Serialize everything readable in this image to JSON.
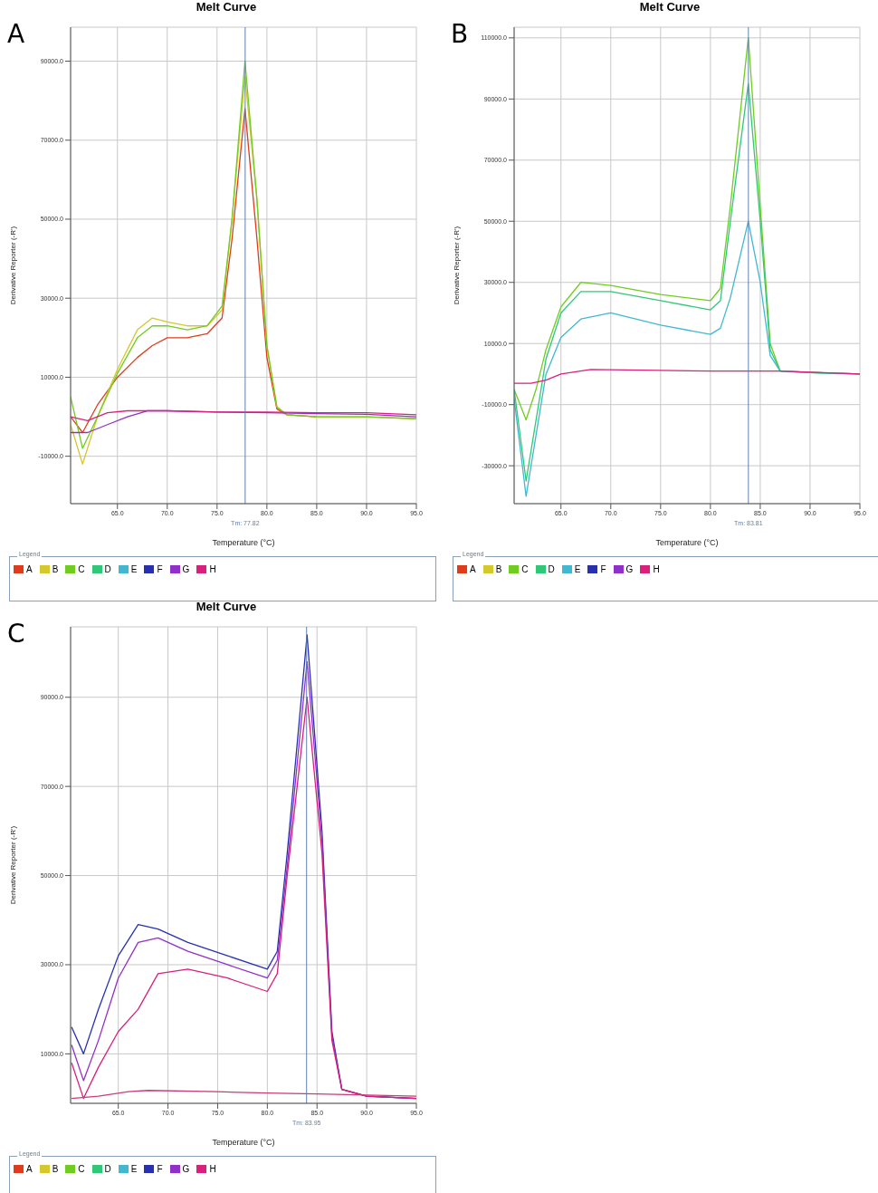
{
  "chart_data": [
    {
      "type": "line",
      "title": "Melt Curve",
      "annotations": [
        "A"
      ],
      "xlabel": "Temperature (°C)",
      "ylabel": "Derivative Reporter (-R')",
      "legend_title": "Legend",
      "legend": "bottom",
      "grid": true,
      "xlim": [
        60.3,
        95
      ],
      "xticks": [
        {
          "value": 65,
          "label": "65.0"
        },
        {
          "value": 70,
          "label": "70.0"
        },
        {
          "value": 75,
          "label": "75.0"
        },
        {
          "value": 80,
          "label": "80.0"
        },
        {
          "value": 85,
          "label": "85.0"
        },
        {
          "value": 90,
          "label": "90.0"
        },
        {
          "value": 95,
          "label": "95.0"
        }
      ],
      "ylim": [
        -22000,
        98600
      ],
      "yticks": [
        {
          "value": -10000,
          "label": "-10000.0"
        },
        {
          "value": 10000,
          "label": "10000.0"
        },
        {
          "value": 30000,
          "label": "30000.0"
        },
        {
          "value": 50000,
          "label": "50000.0"
        },
        {
          "value": 70000,
          "label": "70000.0"
        },
        {
          "value": 90000,
          "label": "90000.0"
        }
      ],
      "ref_lines": [
        {
          "axis": "x",
          "value": 77.82,
          "label": "Tm: 77.82",
          "color": "#6080b0"
        }
      ],
      "series": [
        {
          "name": "A",
          "color": "#e03c1c",
          "x": [
            60.3,
            61.5,
            63,
            65,
            67,
            68.5,
            70,
            72,
            74,
            75.5,
            76.5,
            77.8,
            79,
            80,
            81,
            82,
            85
          ],
          "values": [
            0,
            -4000,
            3000,
            10000,
            15000,
            18000,
            20000,
            20000,
            21000,
            25000,
            45000,
            78000,
            45000,
            15000,
            2000,
            500,
            0
          ]
        },
        {
          "name": "B",
          "color": "#d4c82c",
          "x": [
            60.3,
            61.5,
            63,
            65,
            67,
            68.5,
            70,
            72,
            74,
            75.5,
            76.5,
            77.8,
            79,
            80,
            81,
            82,
            85,
            90,
            95
          ],
          "values": [
            -2000,
            -12000,
            0,
            12000,
            22000,
            25000,
            24000,
            23000,
            23000,
            27000,
            50000,
            86000,
            55000,
            18000,
            2500,
            500,
            0,
            0,
            -500
          ]
        },
        {
          "name": "C",
          "color": "#70cc20",
          "x": [
            60.3,
            61.5,
            63,
            65,
            67,
            68.5,
            70,
            72,
            74,
            75.5,
            76.5,
            77.8,
            79,
            80,
            81,
            82,
            85,
            90,
            95
          ],
          "values": [
            5000,
            -8000,
            0,
            11000,
            20000,
            23000,
            23000,
            22000,
            23000,
            28000,
            50000,
            90000,
            55000,
            18000,
            2500,
            500,
            0,
            0,
            -500
          ]
        },
        {
          "name": "D",
          "color": "#30c878"
        },
        {
          "name": "E",
          "color": "#40b8d0"
        },
        {
          "name": "F",
          "color": "#2830b0"
        },
        {
          "name": "G",
          "color": "#9030c8",
          "x": [
            60.3,
            62,
            64,
            66,
            68,
            70,
            75,
            80,
            85,
            90,
            95
          ],
          "values": [
            -4000,
            -4000,
            -2000,
            0,
            1500,
            1500,
            1200,
            1000,
            800,
            600,
            0
          ]
        },
        {
          "name": "H",
          "color": "#d8207c",
          "x": [
            60.3,
            62,
            64,
            66,
            68,
            70,
            75,
            80,
            85,
            90,
            95
          ],
          "values": [
            0,
            -1000,
            1000,
            1500,
            1500,
            1500,
            1200,
            1200,
            1000,
            1000,
            500
          ]
        }
      ]
    },
    {
      "type": "line",
      "title": "Melt Curve",
      "annotations": [
        "B"
      ],
      "xlabel": "Temperature (°C)",
      "ylabel": "Derivative Reporter (-R')",
      "legend_title": "Legend",
      "legend": "bottom",
      "grid": true,
      "xlim": [
        60.3,
        95
      ],
      "xticks": [
        {
          "value": 65,
          "label": "65.0"
        },
        {
          "value": 70,
          "label": "70.0"
        },
        {
          "value": 75,
          "label": "75.0"
        },
        {
          "value": 80,
          "label": "80.0"
        },
        {
          "value": 85,
          "label": "85.0"
        },
        {
          "value": 90,
          "label": "90.0"
        },
        {
          "value": 95,
          "label": "95.0"
        }
      ],
      "ylim": [
        -42400,
        113500
      ],
      "yticks": [
        {
          "value": -30000,
          "label": "-30000.0"
        },
        {
          "value": -10000,
          "label": "-10000.0"
        },
        {
          "value": 10000,
          "label": "10000.0"
        },
        {
          "value": 30000,
          "label": "30000.0"
        },
        {
          "value": 50000,
          "label": "50000.0"
        },
        {
          "value": 70000,
          "label": "70000.0"
        },
        {
          "value": 90000,
          "label": "90000.0"
        },
        {
          "value": 110000,
          "label": "110000.0"
        }
      ],
      "ref_lines": [
        {
          "axis": "x",
          "value": 83.81,
          "label": "Tm: 83.81",
          "color": "#6080b0"
        }
      ],
      "series": [
        {
          "name": "A",
          "color": "#e03c1c"
        },
        {
          "name": "B",
          "color": "#d4c82c"
        },
        {
          "name": "C",
          "color": "#70cc20",
          "x": [
            60.3,
            61.5,
            62.5,
            63.5,
            65,
            67,
            70,
            75,
            80,
            81,
            82,
            83.8,
            85,
            86,
            87,
            90,
            95
          ],
          "values": [
            -5000,
            -15000,
            -5000,
            8000,
            22000,
            30000,
            29000,
            26000,
            24000,
            28000,
            55000,
            110000,
            55000,
            10000,
            1000,
            500,
            0
          ]
        },
        {
          "name": "D",
          "color": "#30c878",
          "x": [
            60.3,
            61.5,
            62.5,
            63.5,
            65,
            67,
            70,
            75,
            80,
            81,
            82,
            83.8,
            85,
            86,
            87,
            90,
            95
          ],
          "values": [
            -5000,
            -35000,
            -15000,
            5000,
            20000,
            27000,
            27000,
            24000,
            21000,
            24000,
            50000,
            95000,
            50000,
            8000,
            1000,
            500,
            0
          ]
        },
        {
          "name": "E",
          "color": "#40b8d0",
          "x": [
            60.3,
            61.5,
            62.5,
            63.5,
            65,
            67,
            70,
            75,
            80,
            81,
            82,
            83.8,
            85,
            86,
            87,
            90,
            95
          ],
          "values": [
            -8000,
            -40000,
            -20000,
            0,
            12000,
            18000,
            20000,
            16000,
            13000,
            15000,
            25000,
            50000,
            30000,
            6000,
            1000,
            500,
            0
          ]
        },
        {
          "name": "F",
          "color": "#2830b0"
        },
        {
          "name": "G",
          "color": "#9030c8"
        },
        {
          "name": "H",
          "color": "#d8207c",
          "x": [
            60.3,
            62,
            63.5,
            65,
            68,
            75,
            80,
            87,
            95
          ],
          "values": [
            -3000,
            -3000,
            -2000,
            0,
            1500,
            1200,
            1000,
            1000,
            0
          ]
        }
      ]
    },
    {
      "type": "line",
      "title": "Melt Curve",
      "annotations": [
        "C"
      ],
      "xlabel": "Temperature (°C)",
      "ylabel": "Derivative Reporter (-R')",
      "legend_title": "Legend",
      "legend": "bottom",
      "grid": true,
      "xlim": [
        60.2,
        95
      ],
      "xticks": [
        {
          "value": 65,
          "label": "65.0"
        },
        {
          "value": 70,
          "label": "70.0"
        },
        {
          "value": 75,
          "label": "75.0"
        },
        {
          "value": 80,
          "label": "80.0"
        },
        {
          "value": 85,
          "label": "85.0"
        },
        {
          "value": 90,
          "label": "90.0"
        },
        {
          "value": 95,
          "label": "95.0"
        }
      ],
      "ylim": [
        -1100,
        105800
      ],
      "yticks": [
        {
          "value": 10000,
          "label": "10000.0"
        },
        {
          "value": 30000,
          "label": "30000.0"
        },
        {
          "value": 50000,
          "label": "50000.0"
        },
        {
          "value": 70000,
          "label": "70000.0"
        },
        {
          "value": 90000,
          "label": "90000.0"
        }
      ],
      "ref_lines": [
        {
          "axis": "x",
          "value": 83.95,
          "label": "Tm: 83.95",
          "color": "#6080b0"
        }
      ],
      "series": [
        {
          "name": "A",
          "color": "#e03c1c"
        },
        {
          "name": "B",
          "color": "#d4c82c"
        },
        {
          "name": "C",
          "color": "#70cc20"
        },
        {
          "name": "D",
          "color": "#30c878"
        },
        {
          "name": "E",
          "color": "#40b8d0"
        },
        {
          "name": "F",
          "color": "#2830b0",
          "x": [
            60.3,
            61.5,
            63,
            65,
            67,
            69,
            72,
            76,
            80,
            81,
            82,
            84,
            85.5,
            86.5,
            87.5,
            90,
            95
          ],
          "values": [
            16000,
            10000,
            20000,
            32000,
            39000,
            38000,
            35000,
            32000,
            29000,
            33000,
            55000,
            104000,
            60000,
            15000,
            2000,
            500,
            0
          ]
        },
        {
          "name": "G",
          "color": "#9030c8",
          "x": [
            60.3,
            61.5,
            63,
            65,
            67,
            69,
            72,
            76,
            80,
            81,
            82,
            84,
            85.5,
            86.5,
            87.5,
            90,
            95
          ],
          "values": [
            12000,
            4000,
            13000,
            27000,
            35000,
            36000,
            33000,
            30000,
            27000,
            31000,
            52000,
            98000,
            58000,
            14000,
            2000,
            500,
            0
          ]
        },
        {
          "name": "H",
          "color": "#d8207c",
          "x": [
            60.3,
            61.5,
            63,
            65,
            67,
            69,
            72,
            76,
            80,
            81,
            82,
            84,
            85.5,
            86.5,
            87.5,
            90,
            95
          ],
          "values": [
            8000,
            0,
            7000,
            15000,
            20000,
            28000,
            29000,
            27000,
            24000,
            28000,
            50000,
            90000,
            55000,
            13000,
            2000,
            500,
            0
          ]
        },
        {
          "color": "#c83c78",
          "x": [
            60.3,
            63,
            66,
            68,
            75,
            80,
            85,
            95
          ],
          "values": [
            0,
            500,
            1500,
            1800,
            1500,
            1200,
            1000,
            500
          ]
        }
      ]
    }
  ]
}
